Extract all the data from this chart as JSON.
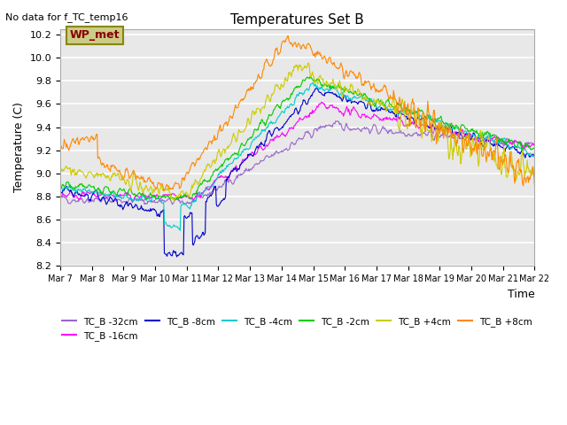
{
  "title": "Temperatures Set B",
  "subtitle": "No data for f_TC_temp16",
  "ylabel": "Temperature (C)",
  "xlabel": "Time",
  "ylim": [
    8.2,
    10.25
  ],
  "yticks": [
    8.2,
    8.4,
    8.6,
    8.8,
    9.0,
    9.2,
    9.4,
    9.6,
    9.8,
    10.0,
    10.2
  ],
  "xtick_labels": [
    "Mar 7",
    "Mar 8",
    "Mar 9",
    "Mar 10",
    "Mar 11",
    "Mar 12",
    "Mar 13",
    "Mar 14",
    "Mar 15",
    "Mar 16",
    "Mar 17",
    "Mar 18",
    "Mar 19",
    "Mar 20",
    "Mar 21",
    "Mar 22"
  ],
  "bg_color": "#e8e8e8",
  "grid_color": "#ffffff",
  "series": [
    {
      "label": "TC_B -32cm",
      "color": "#9966cc"
    },
    {
      "label": "TC_B -16cm",
      "color": "#ff00ff"
    },
    {
      "label": "TC_B -8cm",
      "color": "#0000cc"
    },
    {
      "label": "TC_B -4cm",
      "color": "#00cccc"
    },
    {
      "label": "TC_B -2cm",
      "color": "#00cc00"
    },
    {
      "label": "TC_B +4cm",
      "color": "#cccc00"
    },
    {
      "label": "TC_B +8cm",
      "color": "#ff8800"
    }
  ],
  "wp_met_box_color": "#cccc88",
  "wp_met_text_color": "#880000",
  "lw": 0.8
}
